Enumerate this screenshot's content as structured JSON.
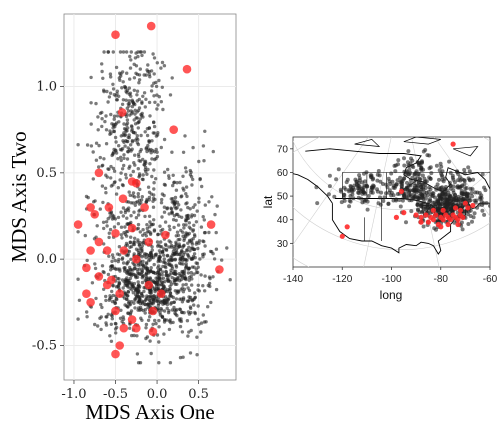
{
  "colors": {
    "background_point": "#222222",
    "highlight_point": "#ff2a2a",
    "grid": "#ebebeb",
    "panel_border": "#888888",
    "map_lines": "#000000",
    "projection_grid": "#d0d0d0"
  },
  "chart_data": [
    {
      "type": "scatter",
      "title": "",
      "xlabel": "MDS Axis One",
      "ylabel": "MDS Axis Two",
      "xlim": [
        -1.12,
        0.95
      ],
      "ylim": [
        -0.7,
        1.42
      ],
      "x_ticks": [
        {
          "value": -1.0,
          "label": "-1.0"
        },
        {
          "value": -0.5,
          "label": "-0.5"
        },
        {
          "value": 0.0,
          "label": "0.0"
        },
        {
          "value": 0.5,
          "label": "0.5"
        }
      ],
      "y_ticks": [
        {
          "value": -0.5,
          "label": "-0.5"
        },
        {
          "value": 0.0,
          "label": "0.0"
        },
        {
          "value": 0.5,
          "label": "0.5"
        },
        {
          "value": 1.0,
          "label": "1.0"
        }
      ],
      "grid": true,
      "legend": "none",
      "series": [
        {
          "role": "background",
          "count": 1600,
          "x_range": [
            -0.95,
            0.88
          ],
          "y_range": [
            -0.6,
            1.2
          ]
        },
        {
          "role": "highlight",
          "points": [
            [
              -0.5,
              1.3
            ],
            [
              -0.07,
              1.35
            ],
            [
              0.36,
              1.1
            ],
            [
              -0.42,
              0.85
            ],
            [
              0.2,
              0.75
            ],
            [
              -0.7,
              0.5
            ],
            [
              -0.3,
              0.45
            ],
            [
              -0.25,
              0.44
            ],
            [
              -0.15,
              0.3
            ],
            [
              -0.8,
              0.3
            ],
            [
              -0.58,
              0.3
            ],
            [
              -0.41,
              0.35
            ],
            [
              -0.75,
              0.26
            ],
            [
              -0.3,
              0.18
            ],
            [
              -0.5,
              0.15
            ],
            [
              -0.7,
              0.1
            ],
            [
              -0.95,
              0.2
            ],
            [
              -0.1,
              0.1
            ],
            [
              0.1,
              0.14
            ],
            [
              0.65,
              0.2
            ],
            [
              -0.8,
              0.05
            ],
            [
              -0.6,
              0.05
            ],
            [
              -0.4,
              0.05
            ],
            [
              -0.25,
              0.0
            ],
            [
              -0.85,
              -0.05
            ],
            [
              -0.7,
              -0.1
            ],
            [
              -0.55,
              -0.12
            ],
            [
              0.75,
              -0.06
            ],
            [
              -0.85,
              -0.2
            ],
            [
              -0.6,
              -0.15
            ],
            [
              -0.45,
              -0.2
            ],
            [
              -0.1,
              -0.15
            ],
            [
              0.05,
              -0.2
            ],
            [
              -0.8,
              -0.25
            ],
            [
              -0.5,
              -0.3
            ],
            [
              -0.3,
              -0.35
            ],
            [
              -0.05,
              -0.3
            ],
            [
              -0.4,
              -0.4
            ],
            [
              -0.25,
              -0.4
            ],
            [
              -0.05,
              -0.42
            ],
            [
              -0.45,
              -0.5
            ],
            [
              -0.5,
              -0.55
            ]
          ]
        }
      ]
    },
    {
      "type": "scatter",
      "title": "",
      "xlabel": "long",
      "ylabel": "lat",
      "xlim": [
        -140,
        -60
      ],
      "ylim": [
        20,
        75
      ],
      "x_ticks": [
        {
          "value": -140,
          "label": "-140"
        },
        {
          "value": -120,
          "label": "-120"
        },
        {
          "value": -100,
          "label": "-100"
        },
        {
          "value": -80,
          "label": "-80"
        },
        {
          "value": -60,
          "label": "-60"
        }
      ],
      "y_ticks": [
        {
          "value": 30,
          "label": "30"
        },
        {
          "value": 40,
          "label": "40"
        },
        {
          "value": 50,
          "label": "50"
        },
        {
          "value": 60,
          "label": "60"
        },
        {
          "value": 70,
          "label": "70"
        }
      ],
      "grid": false,
      "legend": "none",
      "basemap": "North America (country and province outlines)",
      "series": [
        {
          "role": "background",
          "count": 700,
          "clusters": [
            {
              "long": -78,
              "lat": 45,
              "n": 250
            },
            {
              "long": -92,
              "lat": 52,
              "n": 140
            },
            {
              "long": -112,
              "lat": 53,
              "n": 110
            },
            {
              "long": -90,
              "lat": 62,
              "n": 60
            },
            {
              "long": -75,
              "lat": 55,
              "n": 70
            },
            {
              "long": -70,
              "lat": 48,
              "n": 70
            }
          ]
        },
        {
          "role": "highlight",
          "points": [
            [
              -88,
              41
            ],
            [
              -86,
              42
            ],
            [
              -84,
              41
            ],
            [
              -83,
              40
            ],
            [
              -82,
              42
            ],
            [
              -80,
              41
            ],
            [
              -79,
              40
            ],
            [
              -78,
              42
            ],
            [
              -77,
              41
            ],
            [
              -76,
              40
            ],
            [
              -75,
              42
            ],
            [
              -74,
              41
            ],
            [
              -73,
              40
            ],
            [
              -72,
              42
            ],
            [
              -71,
              41
            ],
            [
              -85,
              39
            ],
            [
              -81,
              38
            ],
            [
              -77,
              38
            ],
            [
              -73,
              38
            ],
            [
              -69,
              45
            ],
            [
              -67,
              46
            ],
            [
              -70,
              47
            ],
            [
              -74,
              45
            ],
            [
              -79,
              44
            ],
            [
              -83,
              44
            ],
            [
              -98,
              41
            ],
            [
              -95,
              43
            ],
            [
              -96,
              52
            ],
            [
              -118,
              37
            ],
            [
              -120,
              33
            ],
            [
              -75,
              72
            ],
            [
              -80,
              37
            ],
            [
              -88,
              39
            ],
            [
              -90,
              42
            ],
            [
              -72,
              44
            ]
          ]
        }
      ]
    }
  ]
}
